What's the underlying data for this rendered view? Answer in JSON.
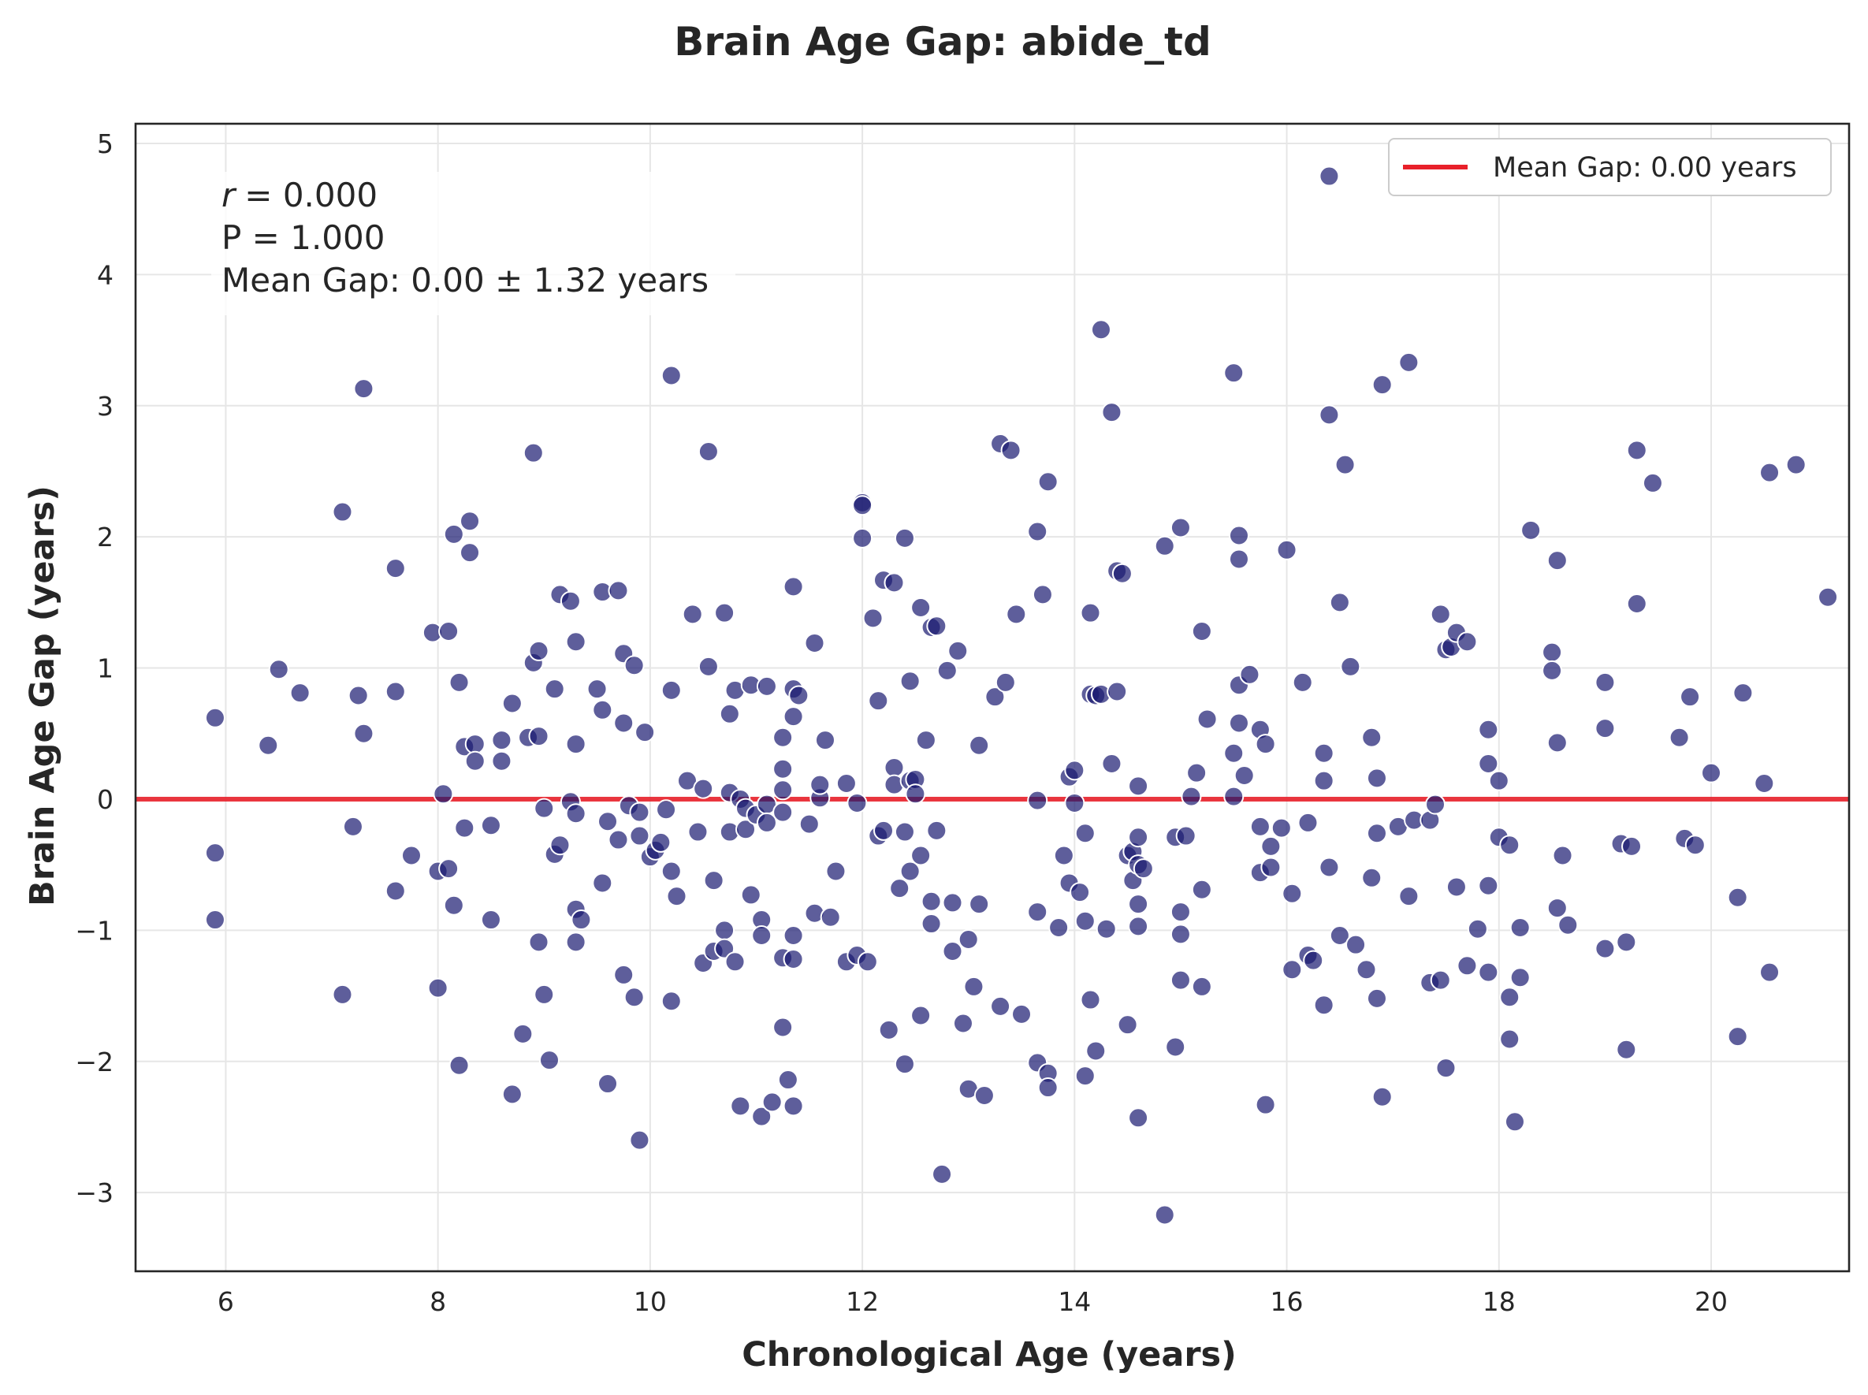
{
  "chart_data": {
    "type": "scatter",
    "title": "Brain Age Gap: abide_td",
    "xlabel": "Chronological Age (years)",
    "ylabel": "Brain Age Gap (years)",
    "xlim": [
      5.15,
      21.3
    ],
    "ylim": [
      -3.6,
      5.15
    ],
    "x_ticks": [
      6,
      8,
      10,
      12,
      14,
      16,
      18,
      20
    ],
    "y_ticks": [
      -3,
      -2,
      -1,
      0,
      1,
      2,
      3,
      4,
      5
    ],
    "x_tick_labels": [
      "6",
      "8",
      "10",
      "12",
      "14",
      "16",
      "18",
      "20"
    ],
    "y_tick_labels": [
      "−3",
      "−2",
      "−1",
      "0",
      "1",
      "2",
      "3",
      "4",
      "5"
    ],
    "grid": true,
    "legend": {
      "placement": "top-right",
      "entries": [
        {
          "label": "Mean Gap: 0.00 years",
          "color": "#e8202a"
        }
      ]
    },
    "mean_line": {
      "y": 0.0,
      "color": "#e8202a"
    },
    "stats_box": {
      "r_symbol": "r",
      "r_value": "= 0.000",
      "p_line": "P = 1.000",
      "gap_line": "Mean Gap: 0.00 ± 1.32 years"
    },
    "point_color": "#191970",
    "points": [
      [
        5.9,
        0.62
      ],
      [
        5.9,
        -0.41
      ],
      [
        5.9,
        -0.92
      ],
      [
        6.4,
        0.41
      ],
      [
        6.5,
        0.99
      ],
      [
        6.7,
        0.81
      ],
      [
        7.1,
        2.19
      ],
      [
        7.1,
        -1.49
      ],
      [
        7.2,
        -0.21
      ],
      [
        7.25,
        0.79
      ],
      [
        7.3,
        3.13
      ],
      [
        7.3,
        0.5
      ],
      [
        7.6,
        1.76
      ],
      [
        7.6,
        0.82
      ],
      [
        7.6,
        -0.7
      ],
      [
        7.75,
        -0.43
      ],
      [
        7.95,
        1.27
      ],
      [
        8.0,
        -1.44
      ],
      [
        8.0,
        -0.55
      ],
      [
        8.05,
        0.04
      ],
      [
        8.1,
        1.28
      ],
      [
        8.1,
        -0.53
      ],
      [
        8.15,
        2.02
      ],
      [
        8.15,
        -0.81
      ],
      [
        8.2,
        0.89
      ],
      [
        8.2,
        -2.03
      ],
      [
        8.25,
        -0.22
      ],
      [
        8.25,
        0.4
      ],
      [
        8.3,
        2.12
      ],
      [
        8.3,
        1.88
      ],
      [
        8.35,
        0.42
      ],
      [
        8.35,
        0.29
      ],
      [
        8.5,
        -0.2
      ],
      [
        8.5,
        -0.92
      ],
      [
        8.6,
        0.29
      ],
      [
        8.6,
        0.45
      ],
      [
        8.7,
        -2.25
      ],
      [
        8.7,
        0.73
      ],
      [
        8.8,
        -1.79
      ],
      [
        8.85,
        0.47
      ],
      [
        8.9,
        2.64
      ],
      [
        8.9,
        1.04
      ],
      [
        8.95,
        0.48
      ],
      [
        8.95,
        1.13
      ],
      [
        8.95,
        -1.09
      ],
      [
        9.0,
        -1.49
      ],
      [
        9.0,
        -0.07
      ],
      [
        9.05,
        -1.99
      ],
      [
        9.1,
        -0.42
      ],
      [
        9.1,
        0.84
      ],
      [
        9.15,
        1.56
      ],
      [
        9.15,
        -0.35
      ],
      [
        9.25,
        1.51
      ],
      [
        9.25,
        -0.02
      ],
      [
        9.3,
        1.2
      ],
      [
        9.3,
        0.42
      ],
      [
        9.3,
        -0.11
      ],
      [
        9.3,
        -0.84
      ],
      [
        9.3,
        -1.09
      ],
      [
        9.35,
        -0.92
      ],
      [
        9.5,
        0.84
      ],
      [
        9.55,
        1.58
      ],
      [
        9.55,
        0.68
      ],
      [
        9.55,
        -0.64
      ],
      [
        9.6,
        -0.17
      ],
      [
        9.6,
        -2.17
      ],
      [
        9.7,
        1.59
      ],
      [
        9.7,
        -0.31
      ],
      [
        9.75,
        1.11
      ],
      [
        9.75,
        0.58
      ],
      [
        9.75,
        -1.34
      ],
      [
        9.8,
        -0.05
      ],
      [
        9.85,
        1.02
      ],
      [
        9.85,
        -1.51
      ],
      [
        9.9,
        -0.28
      ],
      [
        9.9,
        -0.1
      ],
      [
        9.9,
        -2.6
      ],
      [
        9.95,
        0.51
      ],
      [
        10.0,
        -0.44
      ],
      [
        10.05,
        -0.39
      ],
      [
        10.1,
        -0.33
      ],
      [
        10.15,
        -0.08
      ],
      [
        10.2,
        3.23
      ],
      [
        10.2,
        0.83
      ],
      [
        10.2,
        -0.55
      ],
      [
        10.2,
        -1.54
      ],
      [
        10.25,
        -0.74
      ],
      [
        10.35,
        0.14
      ],
      [
        10.4,
        1.41
      ],
      [
        10.45,
        -0.25
      ],
      [
        10.5,
        0.08
      ],
      [
        10.5,
        -1.25
      ],
      [
        10.55,
        2.65
      ],
      [
        10.55,
        1.01
      ],
      [
        10.6,
        -1.16
      ],
      [
        10.6,
        -0.62
      ],
      [
        10.7,
        1.42
      ],
      [
        10.7,
        -1.0
      ],
      [
        10.7,
        -1.14
      ],
      [
        10.75,
        0.65
      ],
      [
        10.75,
        0.05
      ],
      [
        10.75,
        -0.25
      ],
      [
        10.8,
        0.83
      ],
      [
        10.8,
        -1.24
      ],
      [
        10.85,
        0.0
      ],
      [
        10.85,
        -2.34
      ],
      [
        10.9,
        -0.07
      ],
      [
        10.9,
        -0.23
      ],
      [
        10.95,
        0.87
      ],
      [
        10.95,
        -0.73
      ],
      [
        11.0,
        -0.12
      ],
      [
        11.05,
        -0.92
      ],
      [
        11.05,
        -1.04
      ],
      [
        11.05,
        -2.42
      ],
      [
        11.1,
        0.86
      ],
      [
        11.1,
        -0.04
      ],
      [
        11.1,
        -0.18
      ],
      [
        11.15,
        -2.31
      ],
      [
        11.25,
        0.23
      ],
      [
        11.25,
        0.47
      ],
      [
        11.25,
        0.07
      ],
      [
        11.25,
        -0.1
      ],
      [
        11.25,
        -1.21
      ],
      [
        11.25,
        -1.74
      ],
      [
        11.3,
        -2.14
      ],
      [
        11.35,
        1.62
      ],
      [
        11.35,
        0.84
      ],
      [
        11.35,
        0.63
      ],
      [
        11.35,
        -1.04
      ],
      [
        11.35,
        -1.22
      ],
      [
        11.35,
        -2.34
      ],
      [
        11.4,
        0.79
      ],
      [
        11.5,
        -0.19
      ],
      [
        11.55,
        1.19
      ],
      [
        11.55,
        -0.87
      ],
      [
        11.6,
        0.01
      ],
      [
        11.6,
        0.11
      ],
      [
        11.65,
        0.45
      ],
      [
        11.7,
        -0.9
      ],
      [
        11.75,
        -0.55
      ],
      [
        11.85,
        0.12
      ],
      [
        11.85,
        -1.24
      ],
      [
        11.95,
        -1.19
      ],
      [
        11.95,
        -0.03
      ],
      [
        12.0,
        2.26
      ],
      [
        12.0,
        2.24
      ],
      [
        12.0,
        1.99
      ],
      [
        12.05,
        -1.24
      ],
      [
        12.1,
        1.38
      ],
      [
        12.15,
        0.75
      ],
      [
        12.15,
        -0.28
      ],
      [
        12.2,
        1.67
      ],
      [
        12.2,
        -0.24
      ],
      [
        12.25,
        -1.76
      ],
      [
        12.3,
        1.65
      ],
      [
        12.3,
        0.24
      ],
      [
        12.3,
        0.11
      ],
      [
        12.35,
        -0.68
      ],
      [
        12.4,
        -2.02
      ],
      [
        12.4,
        1.99
      ],
      [
        12.4,
        -0.25
      ],
      [
        12.45,
        0.9
      ],
      [
        12.45,
        0.14
      ],
      [
        12.45,
        -0.55
      ],
      [
        12.5,
        0.15
      ],
      [
        12.5,
        0.04
      ],
      [
        12.55,
        1.46
      ],
      [
        12.55,
        -0.43
      ],
      [
        12.55,
        -1.65
      ],
      [
        12.6,
        0.45
      ],
      [
        12.65,
        1.31
      ],
      [
        12.65,
        -0.78
      ],
      [
        12.65,
        -0.95
      ],
      [
        12.7,
        1.32
      ],
      [
        12.7,
        -0.24
      ],
      [
        12.75,
        -2.86
      ],
      [
        12.8,
        0.98
      ],
      [
        12.85,
        -0.79
      ],
      [
        12.85,
        -1.16
      ],
      [
        12.9,
        1.13
      ],
      [
        12.95,
        -1.71
      ],
      [
        13.0,
        -1.07
      ],
      [
        13.0,
        -2.21
      ],
      [
        13.05,
        -1.43
      ],
      [
        13.1,
        0.41
      ],
      [
        13.1,
        -0.8
      ],
      [
        13.15,
        -2.26
      ],
      [
        13.25,
        0.78
      ],
      [
        13.3,
        2.71
      ],
      [
        13.3,
        -1.58
      ],
      [
        13.35,
        0.89
      ],
      [
        13.4,
        2.66
      ],
      [
        13.45,
        1.41
      ],
      [
        13.5,
        -1.64
      ],
      [
        13.65,
        2.04
      ],
      [
        13.65,
        -0.86
      ],
      [
        13.65,
        -2.01
      ],
      [
        13.65,
        -0.01
      ],
      [
        13.7,
        1.56
      ],
      [
        13.75,
        2.42
      ],
      [
        13.75,
        -2.09
      ],
      [
        13.75,
        -2.2
      ],
      [
        13.85,
        -0.98
      ],
      [
        13.9,
        -0.43
      ],
      [
        13.95,
        0.17
      ],
      [
        13.95,
        -0.64
      ],
      [
        14.0,
        0.22
      ],
      [
        14.0,
        -0.03
      ],
      [
        14.05,
        -0.71
      ],
      [
        14.1,
        -0.26
      ],
      [
        14.1,
        -0.93
      ],
      [
        14.1,
        -2.11
      ],
      [
        14.15,
        -1.53
      ],
      [
        14.15,
        1.42
      ],
      [
        14.15,
        0.8
      ],
      [
        14.2,
        0.79
      ],
      [
        14.2,
        -1.92
      ],
      [
        14.25,
        3.58
      ],
      [
        14.25,
        0.8
      ],
      [
        14.3,
        -0.99
      ],
      [
        14.35,
        2.95
      ],
      [
        14.35,
        0.27
      ],
      [
        14.4,
        1.74
      ],
      [
        14.4,
        0.82
      ],
      [
        14.45,
        1.72
      ],
      [
        14.5,
        -0.43
      ],
      [
        14.5,
        -1.72
      ],
      [
        14.55,
        -0.62
      ],
      [
        14.55,
        -0.4
      ],
      [
        14.6,
        -0.97
      ],
      [
        14.6,
        -0.8
      ],
      [
        14.6,
        -0.5
      ],
      [
        14.6,
        -0.29
      ],
      [
        14.6,
        0.1
      ],
      [
        14.6,
        -2.43
      ],
      [
        14.65,
        -0.53
      ],
      [
        14.85,
        1.93
      ],
      [
        14.85,
        -3.17
      ],
      [
        14.95,
        -1.89
      ],
      [
        14.95,
        -0.29
      ],
      [
        15.0,
        2.07
      ],
      [
        15.0,
        -0.86
      ],
      [
        15.0,
        -1.03
      ],
      [
        15.0,
        -1.38
      ],
      [
        15.05,
        -0.28
      ],
      [
        15.1,
        0.02
      ],
      [
        15.15,
        0.2
      ],
      [
        15.2,
        1.28
      ],
      [
        15.2,
        -0.69
      ],
      [
        15.2,
        -1.43
      ],
      [
        15.25,
        0.61
      ],
      [
        15.5,
        0.35
      ],
      [
        15.5,
        0.02
      ],
      [
        15.5,
        3.25
      ],
      [
        15.55,
        2.01
      ],
      [
        15.55,
        1.83
      ],
      [
        15.55,
        0.87
      ],
      [
        15.55,
        0.58
      ],
      [
        15.6,
        0.18
      ],
      [
        15.65,
        0.95
      ],
      [
        15.75,
        0.53
      ],
      [
        15.75,
        -0.21
      ],
      [
        15.75,
        -0.56
      ],
      [
        15.8,
        0.42
      ],
      [
        15.8,
        -2.33
      ],
      [
        15.85,
        -0.52
      ],
      [
        15.85,
        -0.36
      ],
      [
        15.95,
        -0.22
      ],
      [
        16.0,
        1.9
      ],
      [
        16.05,
        -0.72
      ],
      [
        16.05,
        -1.3
      ],
      [
        16.15,
        0.89
      ],
      [
        16.2,
        -0.18
      ],
      [
        16.2,
        -1.19
      ],
      [
        16.25,
        -1.23
      ],
      [
        16.35,
        0.35
      ],
      [
        16.35,
        0.14
      ],
      [
        16.35,
        -1.57
      ],
      [
        16.4,
        4.75
      ],
      [
        16.4,
        2.93
      ],
      [
        16.4,
        -0.52
      ],
      [
        16.5,
        1.5
      ],
      [
        16.5,
        -1.04
      ],
      [
        16.55,
        2.55
      ],
      [
        16.6,
        1.01
      ],
      [
        16.65,
        -1.11
      ],
      [
        16.75,
        -1.3
      ],
      [
        16.8,
        0.47
      ],
      [
        16.8,
        -0.6
      ],
      [
        16.85,
        0.16
      ],
      [
        16.85,
        -0.26
      ],
      [
        16.85,
        -1.52
      ],
      [
        16.9,
        3.16
      ],
      [
        16.9,
        -2.27
      ],
      [
        17.05,
        -0.21
      ],
      [
        17.15,
        3.33
      ],
      [
        17.15,
        -0.74
      ],
      [
        17.2,
        -0.16
      ],
      [
        17.35,
        -0.16
      ],
      [
        17.35,
        -1.4
      ],
      [
        17.4,
        -0.04
      ],
      [
        17.45,
        1.41
      ],
      [
        17.45,
        -1.38
      ],
      [
        17.5,
        1.14
      ],
      [
        17.5,
        -2.05
      ],
      [
        17.55,
        1.16
      ],
      [
        17.6,
        1.27
      ],
      [
        17.6,
        -0.67
      ],
      [
        17.7,
        1.2
      ],
      [
        17.7,
        -1.27
      ],
      [
        17.8,
        -0.99
      ],
      [
        17.9,
        0.53
      ],
      [
        17.9,
        0.27
      ],
      [
        17.9,
        -0.66
      ],
      [
        17.9,
        -1.32
      ],
      [
        18.0,
        0.14
      ],
      [
        18.0,
        -0.29
      ],
      [
        18.1,
        -0.35
      ],
      [
        18.1,
        -1.51
      ],
      [
        18.1,
        -1.83
      ],
      [
        18.15,
        -2.46
      ],
      [
        18.2,
        -1.36
      ],
      [
        18.2,
        -0.98
      ],
      [
        18.3,
        2.05
      ],
      [
        18.5,
        1.12
      ],
      [
        18.5,
        0.98
      ],
      [
        18.55,
        1.82
      ],
      [
        18.55,
        0.43
      ],
      [
        18.55,
        -0.83
      ],
      [
        18.6,
        -0.43
      ],
      [
        18.65,
        -0.96
      ],
      [
        19.0,
        0.89
      ],
      [
        19.0,
        0.54
      ],
      [
        19.0,
        -1.14
      ],
      [
        19.15,
        -0.34
      ],
      [
        19.2,
        -1.09
      ],
      [
        19.2,
        -1.91
      ],
      [
        19.25,
        -0.36
      ],
      [
        19.3,
        2.66
      ],
      [
        19.3,
        1.49
      ],
      [
        19.45,
        2.41
      ],
      [
        19.7,
        0.47
      ],
      [
        19.75,
        -0.3
      ],
      [
        19.8,
        0.78
      ],
      [
        19.85,
        -0.35
      ],
      [
        20.0,
        0.2
      ],
      [
        20.25,
        -0.75
      ],
      [
        20.25,
        -1.81
      ],
      [
        20.3,
        0.81
      ],
      [
        20.5,
        0.12
      ],
      [
        20.55,
        2.49
      ],
      [
        20.55,
        -1.32
      ],
      [
        20.8,
        2.55
      ],
      [
        21.1,
        1.54
      ]
    ]
  }
}
